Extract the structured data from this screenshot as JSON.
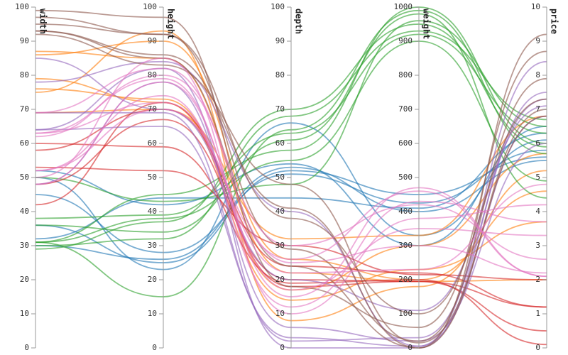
{
  "chart_data": {
    "type": "parallel-coordinates",
    "title": "",
    "dimensions": [
      {
        "name": "width",
        "ticks": [
          "0",
          "10",
          "20",
          "30",
          "40",
          "50",
          "60",
          "70",
          "80",
          "90",
          "100"
        ]
      },
      {
        "name": "height",
        "ticks": [
          "0",
          "10",
          "20",
          "30",
          "40",
          "50",
          "60",
          "70",
          "80",
          "90",
          "100"
        ]
      },
      {
        "name": "depth",
        "ticks": [
          "0",
          "10",
          "20",
          "30",
          "40",
          "50",
          "60",
          "70",
          "80",
          "90",
          "100"
        ]
      },
      {
        "name": "weight",
        "ticks": [
          "0",
          "100",
          "200",
          "300",
          "400",
          "500",
          "600",
          "700",
          "800",
          "900",
          "1000"
        ]
      },
      {
        "name": "price",
        "ticks": [
          "0",
          "1",
          "2",
          "3",
          "4",
          "5",
          "6",
          "7",
          "8",
          "9",
          "10"
        ]
      }
    ],
    "ranges": [
      [
        0,
        100
      ],
      [
        0,
        100
      ],
      [
        0,
        100
      ],
      [
        0,
        1000
      ],
      [
        0,
        10
      ]
    ],
    "groups": [
      {
        "color": "#1f77b4",
        "rows": [
          [
            32,
            44,
            44,
            410,
            6.3
          ],
          [
            45,
            28,
            51,
            425,
            5.8
          ],
          [
            50,
            23,
            66,
            330,
            6.1
          ],
          [
            30,
            26,
            53,
            400,
            5.5
          ],
          [
            36,
            25,
            52,
            450,
            5.6
          ],
          [
            52,
            42,
            54,
            300,
            6.5
          ]
        ]
      },
      {
        "color": "#ff7f0e",
        "rows": [
          [
            87,
            85,
            22,
            195,
            2.0
          ],
          [
            75,
            93,
            8,
            180,
            5.2
          ],
          [
            79,
            72,
            14,
            230,
            3.7
          ],
          [
            69,
            70,
            32,
            330,
            6.8
          ],
          [
            86,
            90,
            26,
            200,
            4.6
          ],
          [
            76,
            73,
            17,
            300,
            5.7
          ]
        ]
      },
      {
        "color": "#2ca02c",
        "rows": [
          [
            31,
            15,
            64,
            990,
            5.7
          ],
          [
            30,
            32,
            68,
            930,
            6.7
          ],
          [
            29,
            37,
            70,
            950,
            5.9
          ],
          [
            38,
            39,
            63,
            920,
            6.3
          ],
          [
            36,
            34,
            61,
            980,
            4.4
          ],
          [
            31,
            38,
            55,
            900,
            4.9
          ],
          [
            50,
            43,
            48,
            960,
            6.5
          ],
          [
            31,
            45,
            58,
            1000,
            6.0
          ]
        ]
      },
      {
        "color": "#d62728",
        "rows": [
          [
            53,
            52,
            30,
            215,
            2.0
          ],
          [
            58,
            70,
            24,
            220,
            1.2
          ],
          [
            48,
            67,
            20,
            195,
            0.5
          ],
          [
            60,
            59,
            19,
            200,
            0.1
          ],
          [
            42,
            72,
            18,
            195,
            1.2
          ]
        ]
      },
      {
        "color": "#9467bd",
        "rows": [
          [
            64,
            65,
            3,
            5,
            8.4
          ],
          [
            85,
            70,
            20,
            110,
            7.1
          ],
          [
            78,
            84,
            40,
            5,
            6.8
          ],
          [
            48,
            78,
            6,
            20,
            6.0
          ],
          [
            69,
            69,
            2,
            30,
            7.3
          ],
          [
            64,
            82,
            0,
            0,
            7.5
          ]
        ]
      },
      {
        "color": "#8c564b",
        "rows": [
          [
            99,
            97,
            18,
            60,
            8.7
          ],
          [
            95,
            92,
            29,
            20,
            7.9
          ],
          [
            92,
            83,
            48,
            15,
            6.8
          ],
          [
            97,
            92,
            38,
            100,
            7.3
          ],
          [
            93,
            85,
            24,
            0,
            9.2
          ],
          [
            93,
            86,
            41,
            0,
            7.0
          ]
        ]
      },
      {
        "color": "#e377c2",
        "rows": [
          [
            52,
            74,
            12,
            430,
            3.7
          ],
          [
            63,
            79,
            15,
            470,
            2.1
          ],
          [
            62,
            80,
            30,
            420,
            2.6
          ],
          [
            69,
            82,
            25,
            300,
            2.2
          ],
          [
            52,
            70,
            26,
            460,
            2.1
          ],
          [
            50,
            85,
            10,
            380,
            4.2
          ],
          [
            48,
            78,
            17,
            350,
            3.3
          ],
          [
            63,
            72,
            22,
            230,
            4.8
          ]
        ]
      }
    ]
  }
}
